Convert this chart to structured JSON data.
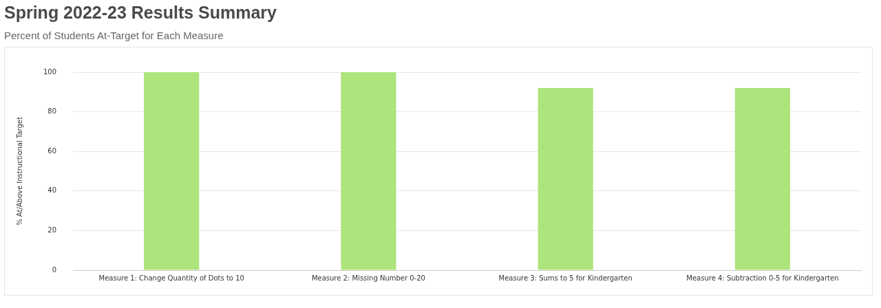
{
  "chart_data": {
    "type": "bar",
    "title": "Spring 2022-23 Results Summary",
    "subtitle": "Percent of Students At-Target for Each Measure",
    "ylabel": "% At/Above Instructional Target",
    "categories": [
      "Measure 1: Change Quantity of Dots to 10",
      "Measure 2: Missing Number 0-20",
      "Measure 3: Sums to 5 for Kindergarten",
      "Measure 4: Subtraction 0-5 for Kindergarten"
    ],
    "values": [
      100,
      100,
      92,
      92
    ],
    "color": "#ade47c",
    "ylim": [
      0,
      100
    ],
    "yticks": [
      0,
      20,
      40,
      60,
      80,
      100
    ],
    "grid": "y",
    "legend": false
  }
}
